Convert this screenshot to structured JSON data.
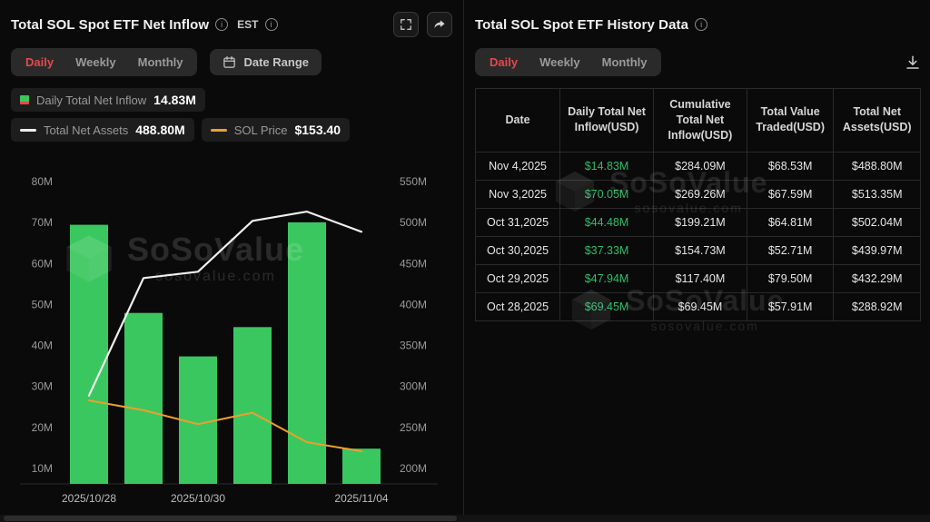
{
  "colors": {
    "accent_red": "#e5484d",
    "bar_green": "#3bc75f",
    "table_value_green": "#2ebd6b",
    "sol_price_orange": "#ee9f2f",
    "net_assets_white": "#efefef",
    "background": "#0a0a0a"
  },
  "left_panel": {
    "title": "Total SOL Spot ETF Net Inflow",
    "timezone_label": "EST",
    "tabs": [
      {
        "label": "Daily",
        "active": true
      },
      {
        "label": "Weekly",
        "active": false
      },
      {
        "label": "Monthly",
        "active": false
      }
    ],
    "date_range_label": "Date Range",
    "legend": [
      {
        "name": "Daily Total Net Inflow",
        "value": "14.83M"
      },
      {
        "name": "Total Net Assets",
        "value": "488.80M"
      },
      {
        "name": "SOL Price",
        "value": "$153.40"
      }
    ]
  },
  "right_panel": {
    "title": "Total SOL Spot ETF History Data",
    "tabs": [
      {
        "label": "Daily",
        "active": true
      },
      {
        "label": "Weekly",
        "active": false
      },
      {
        "label": "Monthly",
        "active": false
      }
    ],
    "table": {
      "headers": [
        "Date",
        "Daily Total Net Inflow(USD)",
        "Cumulative Total Net Inflow(USD)",
        "Total Value Traded(USD)",
        "Total Net Assets(USD)"
      ],
      "rows": [
        [
          "Nov 4,2025",
          "$14.83M",
          "$284.09M",
          "$68.53M",
          "$488.80M"
        ],
        [
          "Nov 3,2025",
          "$70.05M",
          "$269.26M",
          "$67.59M",
          "$513.35M"
        ],
        [
          "Oct 31,2025",
          "$44.48M",
          "$199.21M",
          "$64.81M",
          "$502.04M"
        ],
        [
          "Oct 30,2025",
          "$37.33M",
          "$154.73M",
          "$52.71M",
          "$439.97M"
        ],
        [
          "Oct 29,2025",
          "$47.94M",
          "$117.40M",
          "$79.50M",
          "$432.29M"
        ],
        [
          "Oct 28,2025",
          "$69.45M",
          "$69.45M",
          "$57.91M",
          "$288.92M"
        ]
      ]
    }
  },
  "watermark": {
    "brand": "SoSoValue",
    "domain": "sosovalue.com"
  },
  "chart_data": {
    "type": "bar",
    "title": "Total SOL Spot ETF Net Inflow",
    "categories": [
      "2025/10/28",
      "2025/10/29",
      "2025/10/30",
      "2025/10/31",
      "2025/11/03",
      "2025/11/04"
    ],
    "x_tick_labels": [
      {
        "index": 0,
        "label": "2025/10/28"
      },
      {
        "index": 2,
        "label": "2025/10/30"
      },
      {
        "index": 5,
        "label": "2025/11/04"
      }
    ],
    "series": [
      {
        "name": "Daily Total Net Inflow (USD, millions)",
        "type": "bar",
        "axis": "left",
        "color": "#3bc75f",
        "values": [
          69.45,
          47.94,
          37.33,
          44.48,
          70.05,
          14.83
        ]
      },
      {
        "name": "Total Net Assets (USD, millions)",
        "type": "line",
        "axis": "right",
        "color": "#efefef",
        "width": 2.2,
        "values": [
          288.92,
          432.29,
          439.97,
          502.04,
          513.35,
          488.8
        ]
      },
      {
        "name": "SOL Price (plotted on right-axis position; latest shown $153.40)",
        "type": "line",
        "axis": "right",
        "color": "#ee9f2f",
        "width": 2,
        "values": [
          283,
          271,
          254,
          268,
          232,
          221
        ]
      }
    ],
    "left_axis": {
      "tick_values": [
        10,
        20,
        30,
        40,
        50,
        60,
        70,
        80
      ],
      "unit": "M"
    },
    "right_axis": {
      "tick_values": [
        200,
        250,
        300,
        350,
        400,
        450,
        500,
        550
      ],
      "unit": "M"
    },
    "grid": false,
    "legend_position": "top"
  }
}
